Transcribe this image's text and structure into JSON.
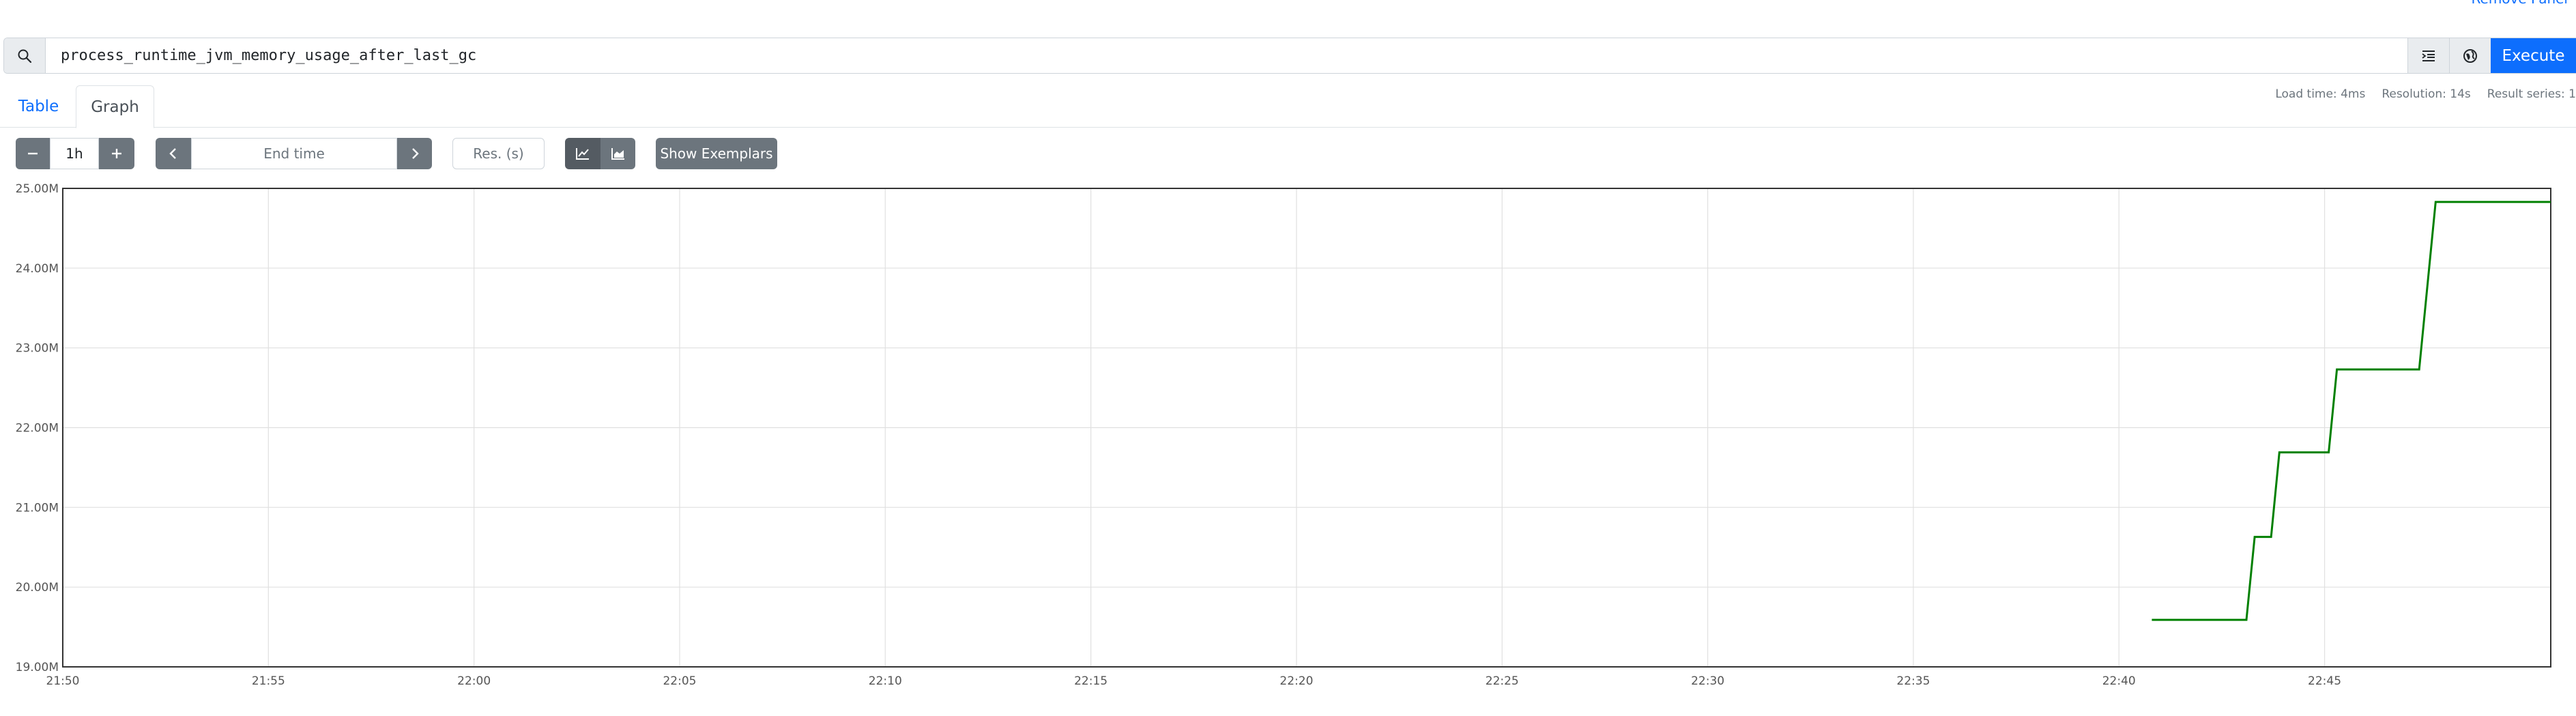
{
  "panel": {
    "remove_label": "Remove Panel"
  },
  "query": {
    "expression": "process_runtime_jvm_memory_usage_after_last_gc",
    "execute_label": "Execute"
  },
  "tabs": [
    {
      "label": "Table",
      "active": false
    },
    {
      "label": "Graph",
      "active": true
    }
  ],
  "stats": {
    "load_time": "Load time: 4ms",
    "resolution": "Resolution: 14s",
    "result_series": "Result series: 1"
  },
  "controls": {
    "range": "1h",
    "end_time_placeholder": "End time",
    "resolution_placeholder": "Res. (s)",
    "show_exemplars_label": "Show Exemplars"
  },
  "icons": {
    "search": "search-icon",
    "format": "format-icon",
    "metrics_explorer": "globe-icon",
    "minus": "minus-icon",
    "plus": "plus-icon",
    "prev": "chevron-left-icon",
    "next": "chevron-right-icon",
    "line_chart": "line-chart-icon",
    "stacked_chart": "area-chart-icon"
  },
  "colors": {
    "accent": "#0d6efd",
    "series": "#008000",
    "button": "#6c757d"
  },
  "chart_data": {
    "type": "line",
    "x_ticks": [
      "21:50",
      "21:55",
      "22:00",
      "22:05",
      "22:10",
      "22:15",
      "22:20",
      "22:25",
      "22:30",
      "22:35",
      "22:40",
      "22:45"
    ],
    "y_ticks": [
      "19.00M",
      "20.00M",
      "21.00M",
      "22.00M",
      "23.00M",
      "24.00M",
      "25.00M"
    ],
    "xlim_minutes": [
      0,
      60.5
    ],
    "ylim": [
      19.0,
      25.0
    ],
    "grid": true,
    "series": [
      {
        "points": [
          [
            50.8,
            19.59
          ],
          [
            53.1,
            19.59
          ],
          [
            53.3,
            20.63
          ],
          [
            53.5,
            20.63
          ],
          [
            53.7,
            20.63
          ],
          [
            53.9,
            21.69
          ],
          [
            55.1,
            21.69
          ],
          [
            55.3,
            22.73
          ],
          [
            57.3,
            22.73
          ],
          [
            57.7,
            24.83
          ],
          [
            60.5,
            24.83
          ]
        ]
      }
    ]
  }
}
